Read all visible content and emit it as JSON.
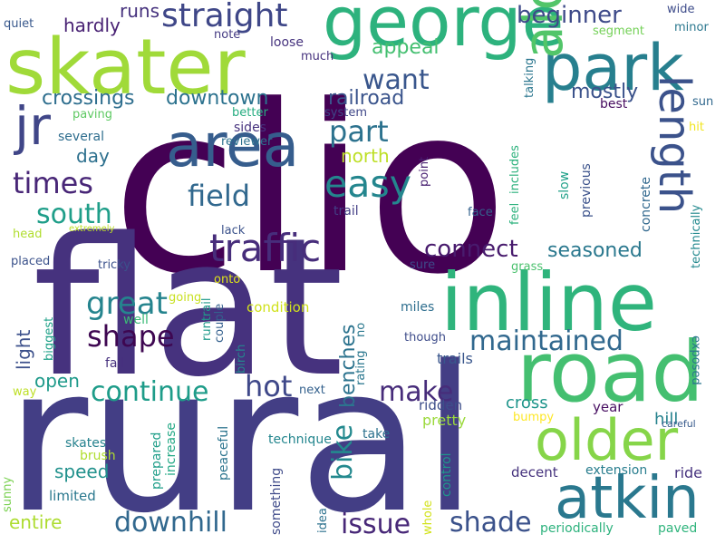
{
  "words": [
    {
      "text": "clio",
      "color": "#440154"
    },
    {
      "text": "flat",
      "color": "#46327e"
    },
    {
      "text": "rural",
      "color": "#433e85"
    },
    {
      "text": "skater",
      "color": "#a0da39"
    },
    {
      "text": "george",
      "color": "#2db27d"
    },
    {
      "text": "park",
      "color": "#277f8e"
    },
    {
      "text": "inline",
      "color": "#2fb47c"
    },
    {
      "text": "road",
      "color": "#44bf70"
    },
    {
      "text": "older",
      "color": "#86d549"
    },
    {
      "text": "atkin",
      "color": "#2a788e"
    },
    {
      "text": "along",
      "color": "#52c569"
    },
    {
      "text": "length",
      "color": "#3b528b"
    },
    {
      "text": "area",
      "color": "#365d8d"
    },
    {
      "text": "jr",
      "color": "#404688"
    },
    {
      "text": "traffic",
      "color": "#472d7b"
    },
    {
      "text": "easy",
      "color": "#24868e"
    },
    {
      "text": "straight",
      "color": "#3f4788"
    },
    {
      "text": "want",
      "color": "#39568c"
    },
    {
      "text": "part",
      "color": "#2c728e"
    },
    {
      "text": "field",
      "color": "#31688e"
    },
    {
      "text": "beginner",
      "color": "#3e4a89"
    },
    {
      "text": "times",
      "color": "#482677"
    },
    {
      "text": "south",
      "color": "#1f9e89"
    },
    {
      "text": "great",
      "color": "#25848e"
    },
    {
      "text": "shape",
      "color": "#3e0751"
    },
    {
      "text": "connect",
      "color": "#481b6d"
    },
    {
      "text": "maintained",
      "color": "#31688e"
    },
    {
      "text": "continue",
      "color": "#1e9c89"
    },
    {
      "text": "hot",
      "color": "#3f4889"
    },
    {
      "text": "make",
      "color": "#472c7a"
    },
    {
      "text": "downhill",
      "color": "#31688e"
    },
    {
      "text": "issue",
      "color": "#482878"
    },
    {
      "text": "shade",
      "color": "#3b528b"
    },
    {
      "text": "bike",
      "color": "#23898e"
    },
    {
      "text": "benches",
      "color": "#2c738e"
    },
    {
      "text": "crossings",
      "color": "#2e6e8e"
    },
    {
      "text": "downtown",
      "color": "#2c728e"
    },
    {
      "text": "railroad",
      "color": "#3a548c"
    },
    {
      "text": "mostly",
      "color": "#3b528b"
    },
    {
      "text": "appeal",
      "color": "#44bf70"
    },
    {
      "text": "seasoned",
      "color": "#2a788e"
    },
    {
      "text": "north",
      "color": "#bddf26"
    },
    {
      "text": "hardly",
      "color": "#482173"
    },
    {
      "text": "runs",
      "color": "#46327e"
    },
    {
      "text": "day",
      "color": "#2d708e"
    },
    {
      "text": "light",
      "color": "#3c508b"
    },
    {
      "text": "open",
      "color": "#1f9a8a"
    },
    {
      "text": "speed",
      "color": "#21918c"
    },
    {
      "text": "entire",
      "color": "#addc30"
    },
    {
      "text": "trails",
      "color": "#39568c"
    },
    {
      "text": "cross",
      "color": "#1f958b"
    },
    {
      "text": "hill",
      "color": "#26828e"
    },
    {
      "text": "year",
      "color": "#470e61"
    },
    {
      "text": "pretty",
      "color": "#9bd93c"
    },
    {
      "text": "ridden",
      "color": "#3d4e8a"
    },
    {
      "text": "technique",
      "color": "#24868e"
    },
    {
      "text": "take",
      "color": "#2c718e"
    },
    {
      "text": "decent",
      "color": "#46337e"
    },
    {
      "text": "extension",
      "color": "#287d8e"
    },
    {
      "text": "ride",
      "color": "#46327e"
    },
    {
      "text": "periodically",
      "color": "#2db27d"
    },
    {
      "text": "paved",
      "color": "#2fb47c"
    },
    {
      "text": "limited",
      "color": "#2a788e"
    },
    {
      "text": "skates",
      "color": "#26828e"
    },
    {
      "text": "brush",
      "color": "#b0dd2f"
    },
    {
      "text": "sunny",
      "color": "#7ad151"
    },
    {
      "text": "fall",
      "color": "#46307e"
    },
    {
      "text": "way",
      "color": "#bddf26"
    },
    {
      "text": "next",
      "color": "#34618d"
    },
    {
      "text": "prepared",
      "color": "#1f9e89"
    },
    {
      "text": "increase",
      "color": "#22a884"
    },
    {
      "text": "peaceful",
      "color": "#2b748e"
    },
    {
      "text": "something",
      "color": "#3e4a89"
    },
    {
      "text": "idea",
      "color": "#2c718e"
    },
    {
      "text": "whole",
      "color": "#d2e21b"
    },
    {
      "text": "control",
      "color": "#1f958b"
    },
    {
      "text": "bumpy",
      "color": "#fde725"
    },
    {
      "text": "careful",
      "color": "#375a8c"
    },
    {
      "text": "exposed",
      "color": "#2b758e"
    },
    {
      "text": "miles",
      "color": "#2e6e8e"
    },
    {
      "text": "though",
      "color": "#3e4c8a"
    },
    {
      "text": "rating",
      "color": "#2a778e"
    },
    {
      "text": "no",
      "color": "#2a788e"
    },
    {
      "text": "runtrail",
      "color": "#1f9a8a"
    },
    {
      "text": "couple",
      "color": "#34608d"
    },
    {
      "text": "condition",
      "color": "#d0e11c"
    },
    {
      "text": "birch",
      "color": "#25858e"
    },
    {
      "text": "going",
      "color": "#c8e020"
    },
    {
      "text": "onto",
      "color": "#dde318"
    },
    {
      "text": "well",
      "color": "#3aba76"
    },
    {
      "text": "tricky",
      "color": "#3b518b"
    },
    {
      "text": "biggest",
      "color": "#1fa188"
    },
    {
      "text": "placed",
      "color": "#3b528b"
    },
    {
      "text": "lack",
      "color": "#3b528b"
    },
    {
      "text": "head",
      "color": "#b0dd2f"
    },
    {
      "text": "extremely",
      "color": "#bddf26"
    },
    {
      "text": "sure",
      "color": "#3e4989"
    },
    {
      "text": "grass",
      "color": "#4ac16d"
    },
    {
      "text": "technically",
      "color": "#23898e"
    },
    {
      "text": "concrete",
      "color": "#31688e"
    },
    {
      "text": "slow",
      "color": "#1fa088"
    },
    {
      "text": "previous",
      "color": "#3b528b"
    },
    {
      "text": "feel",
      "color": "#2db27d"
    },
    {
      "text": "includes",
      "color": "#2db27d"
    },
    {
      "text": "talking",
      "color": "#2a768e"
    },
    {
      "text": "face",
      "color": "#34618d"
    },
    {
      "text": "point",
      "color": "#482071"
    },
    {
      "text": "trail",
      "color": "#433e85"
    },
    {
      "text": "system",
      "color": "#3f4788"
    },
    {
      "text": "better",
      "color": "#26ad81"
    },
    {
      "text": "paving",
      "color": "#5ec962"
    },
    {
      "text": "several",
      "color": "#2e6d8e"
    },
    {
      "text": "reviewer",
      "color": "#2c718e"
    },
    {
      "text": "sides",
      "color": "#46327e"
    },
    {
      "text": "loose",
      "color": "#46337e"
    },
    {
      "text": "much",
      "color": "#46327e"
    },
    {
      "text": "note",
      "color": "#443a83"
    },
    {
      "text": "quiet",
      "color": "#38588c"
    },
    {
      "text": "segment",
      "color": "#73d056"
    },
    {
      "text": "minor",
      "color": "#2a778e"
    },
    {
      "text": "wide",
      "color": "#3e4c8a"
    },
    {
      "text": "best",
      "color": "#470d60"
    },
    {
      "text": "sun",
      "color": "#31688e"
    },
    {
      "text": "hit",
      "color": "#f1e51d"
    }
  ]
}
